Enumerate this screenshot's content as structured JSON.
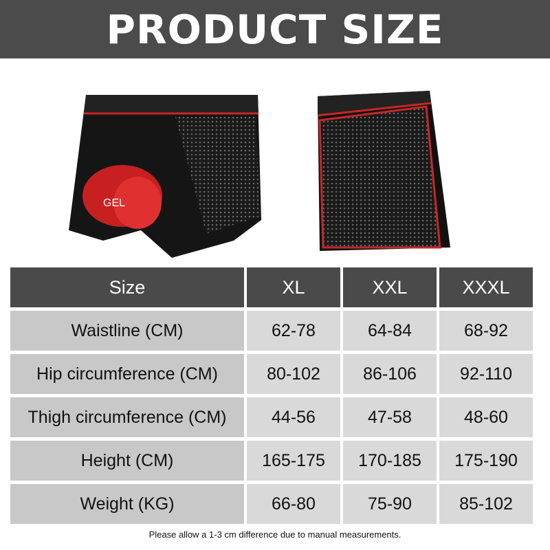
{
  "banner": {
    "title": "PRODUCT SIZE"
  },
  "table": {
    "headers": [
      "Size",
      "XL",
      "XXL",
      "XXXL"
    ],
    "rows": [
      {
        "label": "Waistline  (CM)",
        "values": [
          "62-78",
          "64-84",
          "68-92"
        ]
      },
      {
        "label": "Hip circumference (CM)",
        "values": [
          "80-102",
          "86-106",
          "92-110"
        ]
      },
      {
        "label": "Thigh circumference (CM)",
        "values": [
          "44-56",
          "47-58",
          "48-60"
        ]
      },
      {
        "label": "Height (CM)",
        "values": [
          "165-175",
          "170-185",
          "175-190"
        ]
      },
      {
        "label": "Weight (KG)",
        "values": [
          "66-80",
          "75-90",
          "85-102"
        ]
      }
    ]
  },
  "product": {
    "pad_text": "GEL"
  },
  "footer": {
    "note": "Please allow a 1-3 cm difference due to manual measurements."
  },
  "colors": {
    "banner": "#4b4b4b",
    "header": "#4a4a4a",
    "accent_red": "#d42a2a"
  }
}
